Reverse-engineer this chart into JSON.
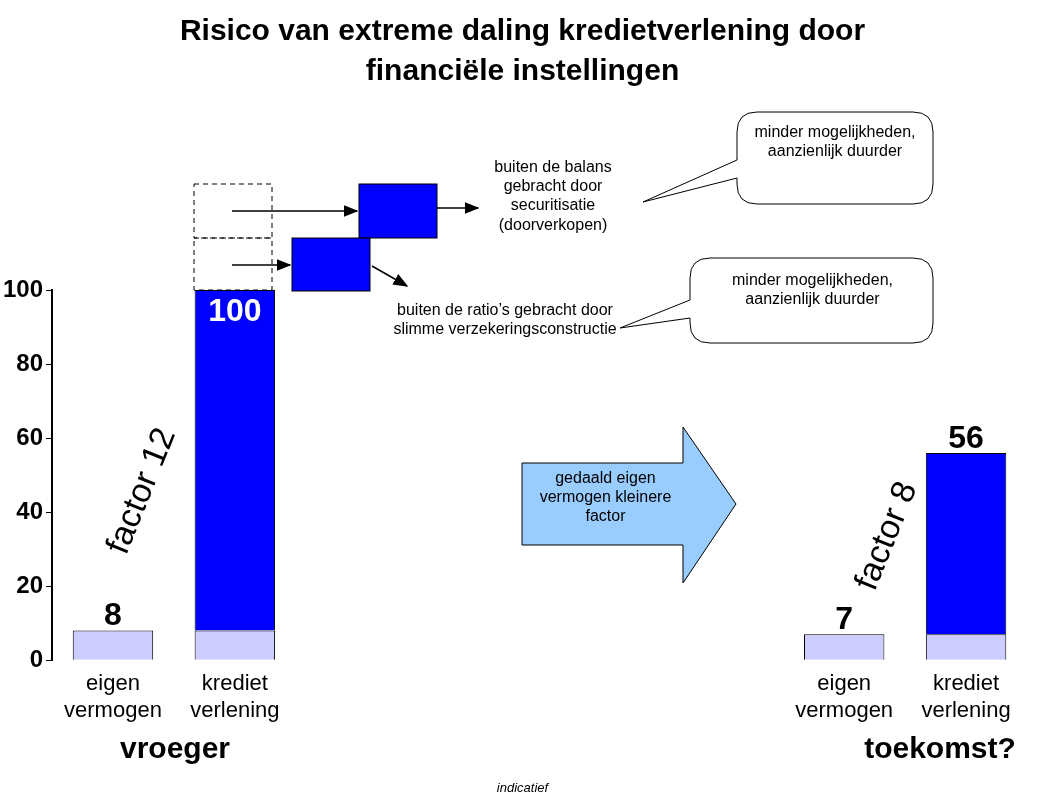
{
  "chart_data": {
    "type": "bar",
    "title": "Risico van extreme daling kredietverlening door financiële instellingen",
    "categories": [
      "eigen vermogen",
      "krediet verlening",
      null,
      null,
      null,
      null,
      "eigen vermogen",
      "krediet verlening"
    ],
    "series": [
      {
        "color": "#ccccff",
        "values": [
          8,
          8,
          null,
          null,
          null,
          null,
          7,
          7
        ]
      },
      {
        "color": "#0000ff",
        "values": [
          null,
          92,
          null,
          null,
          null,
          null,
          null,
          49
        ]
      }
    ],
    "stacked": true,
    "ylim": [
      0,
      100
    ],
    "yticks": [
      0,
      20,
      40,
      60,
      80,
      100
    ],
    "totals": [
      "8",
      "100",
      null,
      null,
      null,
      null,
      "7",
      "56"
    ],
    "annotations": [
      "factor 12",
      "factor 8",
      "buiten de balans gebracht door securitisatie (doorverkopen)",
      "buiten de ratio’s gebracht door slimme verzekeringsconstructie",
      "minder mogelijkheden, aanzienlijk duurder",
      "minder mogelijkheden, aanzienlijk duurder",
      "gedaald eigen vermogen kleinere factor",
      "vroeger",
      "toekomst?",
      "indicatief"
    ]
  }
}
